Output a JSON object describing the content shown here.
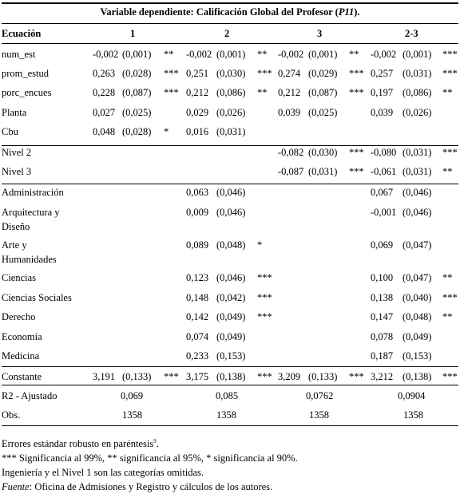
{
  "title_prefix": "Variable dependiente: Calificación Global del Profesor (",
  "title_var": "P11",
  "title_suffix": ").",
  "header": {
    "label": "Ecuación",
    "cols": [
      "1",
      "2",
      "3",
      "2-3"
    ]
  },
  "rows": [
    {
      "label": "num_est",
      "cells": [
        [
          "-0,002",
          "(0,001)",
          "**"
        ],
        [
          "-0,002",
          "(0,001)",
          "**"
        ],
        [
          "-0,002",
          "(0,001)",
          "**"
        ],
        [
          "-0,002",
          "(0,001)",
          "***"
        ]
      ]
    },
    {
      "label": "prom_estud",
      "cells": [
        [
          "0,263",
          "(0,028)",
          "***"
        ],
        [
          "0,251",
          "(0,030)",
          "***"
        ],
        [
          "0,274",
          "(0,029)",
          "***"
        ],
        [
          "0,257",
          "(0,031)",
          "***"
        ]
      ]
    },
    {
      "label": "porc_encues",
      "cells": [
        [
          "0,228",
          "(0,087)",
          "***"
        ],
        [
          "0,212",
          "(0,086)",
          "**"
        ],
        [
          "0,212",
          "(0,087)",
          "***"
        ],
        [
          "0,197",
          "(0,086)",
          "**"
        ]
      ]
    },
    {
      "label": "Planta",
      "cells": [
        [
          "0,027",
          "(0,025)",
          ""
        ],
        [
          "0,029",
          "(0,026)",
          ""
        ],
        [
          "0,039",
          "(0,025)",
          ""
        ],
        [
          "0,039",
          "(0,026)",
          ""
        ]
      ]
    },
    {
      "label": "Cbu",
      "cells": [
        [
          "0,048",
          "(0,028)",
          "*"
        ],
        [
          "0,016",
          "(0,031)",
          ""
        ],
        null,
        null
      ]
    },
    {
      "label": "Nivel 2",
      "cells": [
        null,
        null,
        [
          "-0,082",
          "(0,030)",
          "***"
        ],
        [
          "-0,080",
          "(0,031)",
          "***"
        ]
      ]
    },
    {
      "label": "Nivel 3",
      "cells": [
        null,
        null,
        [
          "-0,087",
          "(0,031)",
          "***"
        ],
        [
          "-0,061",
          "(0,031)",
          "**"
        ]
      ]
    },
    {
      "label": "Administración",
      "cells": [
        null,
        [
          "0,063",
          "(0,046)",
          ""
        ],
        null,
        [
          "0,067",
          "(0,046)",
          ""
        ]
      ]
    },
    {
      "label": "Arquitectura y",
      "label2": "Diseño",
      "cells": [
        null,
        [
          "0,009",
          "(0,046)",
          ""
        ],
        null,
        [
          "-0,001",
          "(0,046)",
          ""
        ]
      ]
    },
    {
      "label": "Arte y",
      "label2": "Humanidades",
      "cells": [
        null,
        [
          "0,089",
          "(0,048)",
          "*"
        ],
        null,
        [
          "0,069",
          "(0,047)",
          ""
        ]
      ]
    },
    {
      "label": "Ciencias",
      "cells": [
        null,
        [
          "0,123",
          "(0,046)",
          "***"
        ],
        null,
        [
          "0,100",
          "(0,047)",
          "**"
        ]
      ]
    },
    {
      "label": "Ciencias Sociales",
      "cells": [
        null,
        [
          "0,148",
          "(0,042)",
          "***"
        ],
        null,
        [
          "0,138",
          "(0,040)",
          "***"
        ]
      ]
    },
    {
      "label": "Derecho",
      "cells": [
        null,
        [
          "0,142",
          "(0,049)",
          "***"
        ],
        null,
        [
          "0,147",
          "(0,048)",
          "**"
        ]
      ]
    },
    {
      "label": "Economía",
      "cells": [
        null,
        [
          "0,074",
          "(0,049)",
          ""
        ],
        null,
        [
          "0,078",
          "(0,049)",
          ""
        ]
      ]
    },
    {
      "label": "Medicina",
      "cells": [
        null,
        [
          "0,233",
          "(0,153)",
          ""
        ],
        null,
        [
          "0,187",
          "(0,153)",
          ""
        ]
      ]
    },
    {
      "label": "Constante",
      "cells": [
        [
          "3,191",
          "(0,133)",
          "***"
        ],
        [
          "3,175",
          "(0,138)",
          "***"
        ],
        [
          "3,209",
          "(0,133)",
          "***"
        ],
        [
          "3,212",
          "(0,138)",
          "***"
        ]
      ]
    }
  ],
  "r2": {
    "label": "R2 - Ajustado",
    "values": [
      "0,069",
      "0,085",
      "0,0762",
      "0,0904"
    ]
  },
  "obs": {
    "label": "Obs.",
    "values": [
      "1358",
      "1358",
      "1358",
      "1358"
    ]
  },
  "notes": {
    "n1": "Errores estándar robusto en paréntesis",
    "n1_sup": "9",
    "n1_end": ".",
    "n2": "*** Significancia al 99%, ** significancia al 95%, * significancia al 90%.",
    "n3": "Ingeniería y el Nivel 1 son las categorías omitidas.",
    "n4_label": "Fuente",
    "n4": ": Oficina de Admisiones y Registro y cálculos de los autores."
  }
}
